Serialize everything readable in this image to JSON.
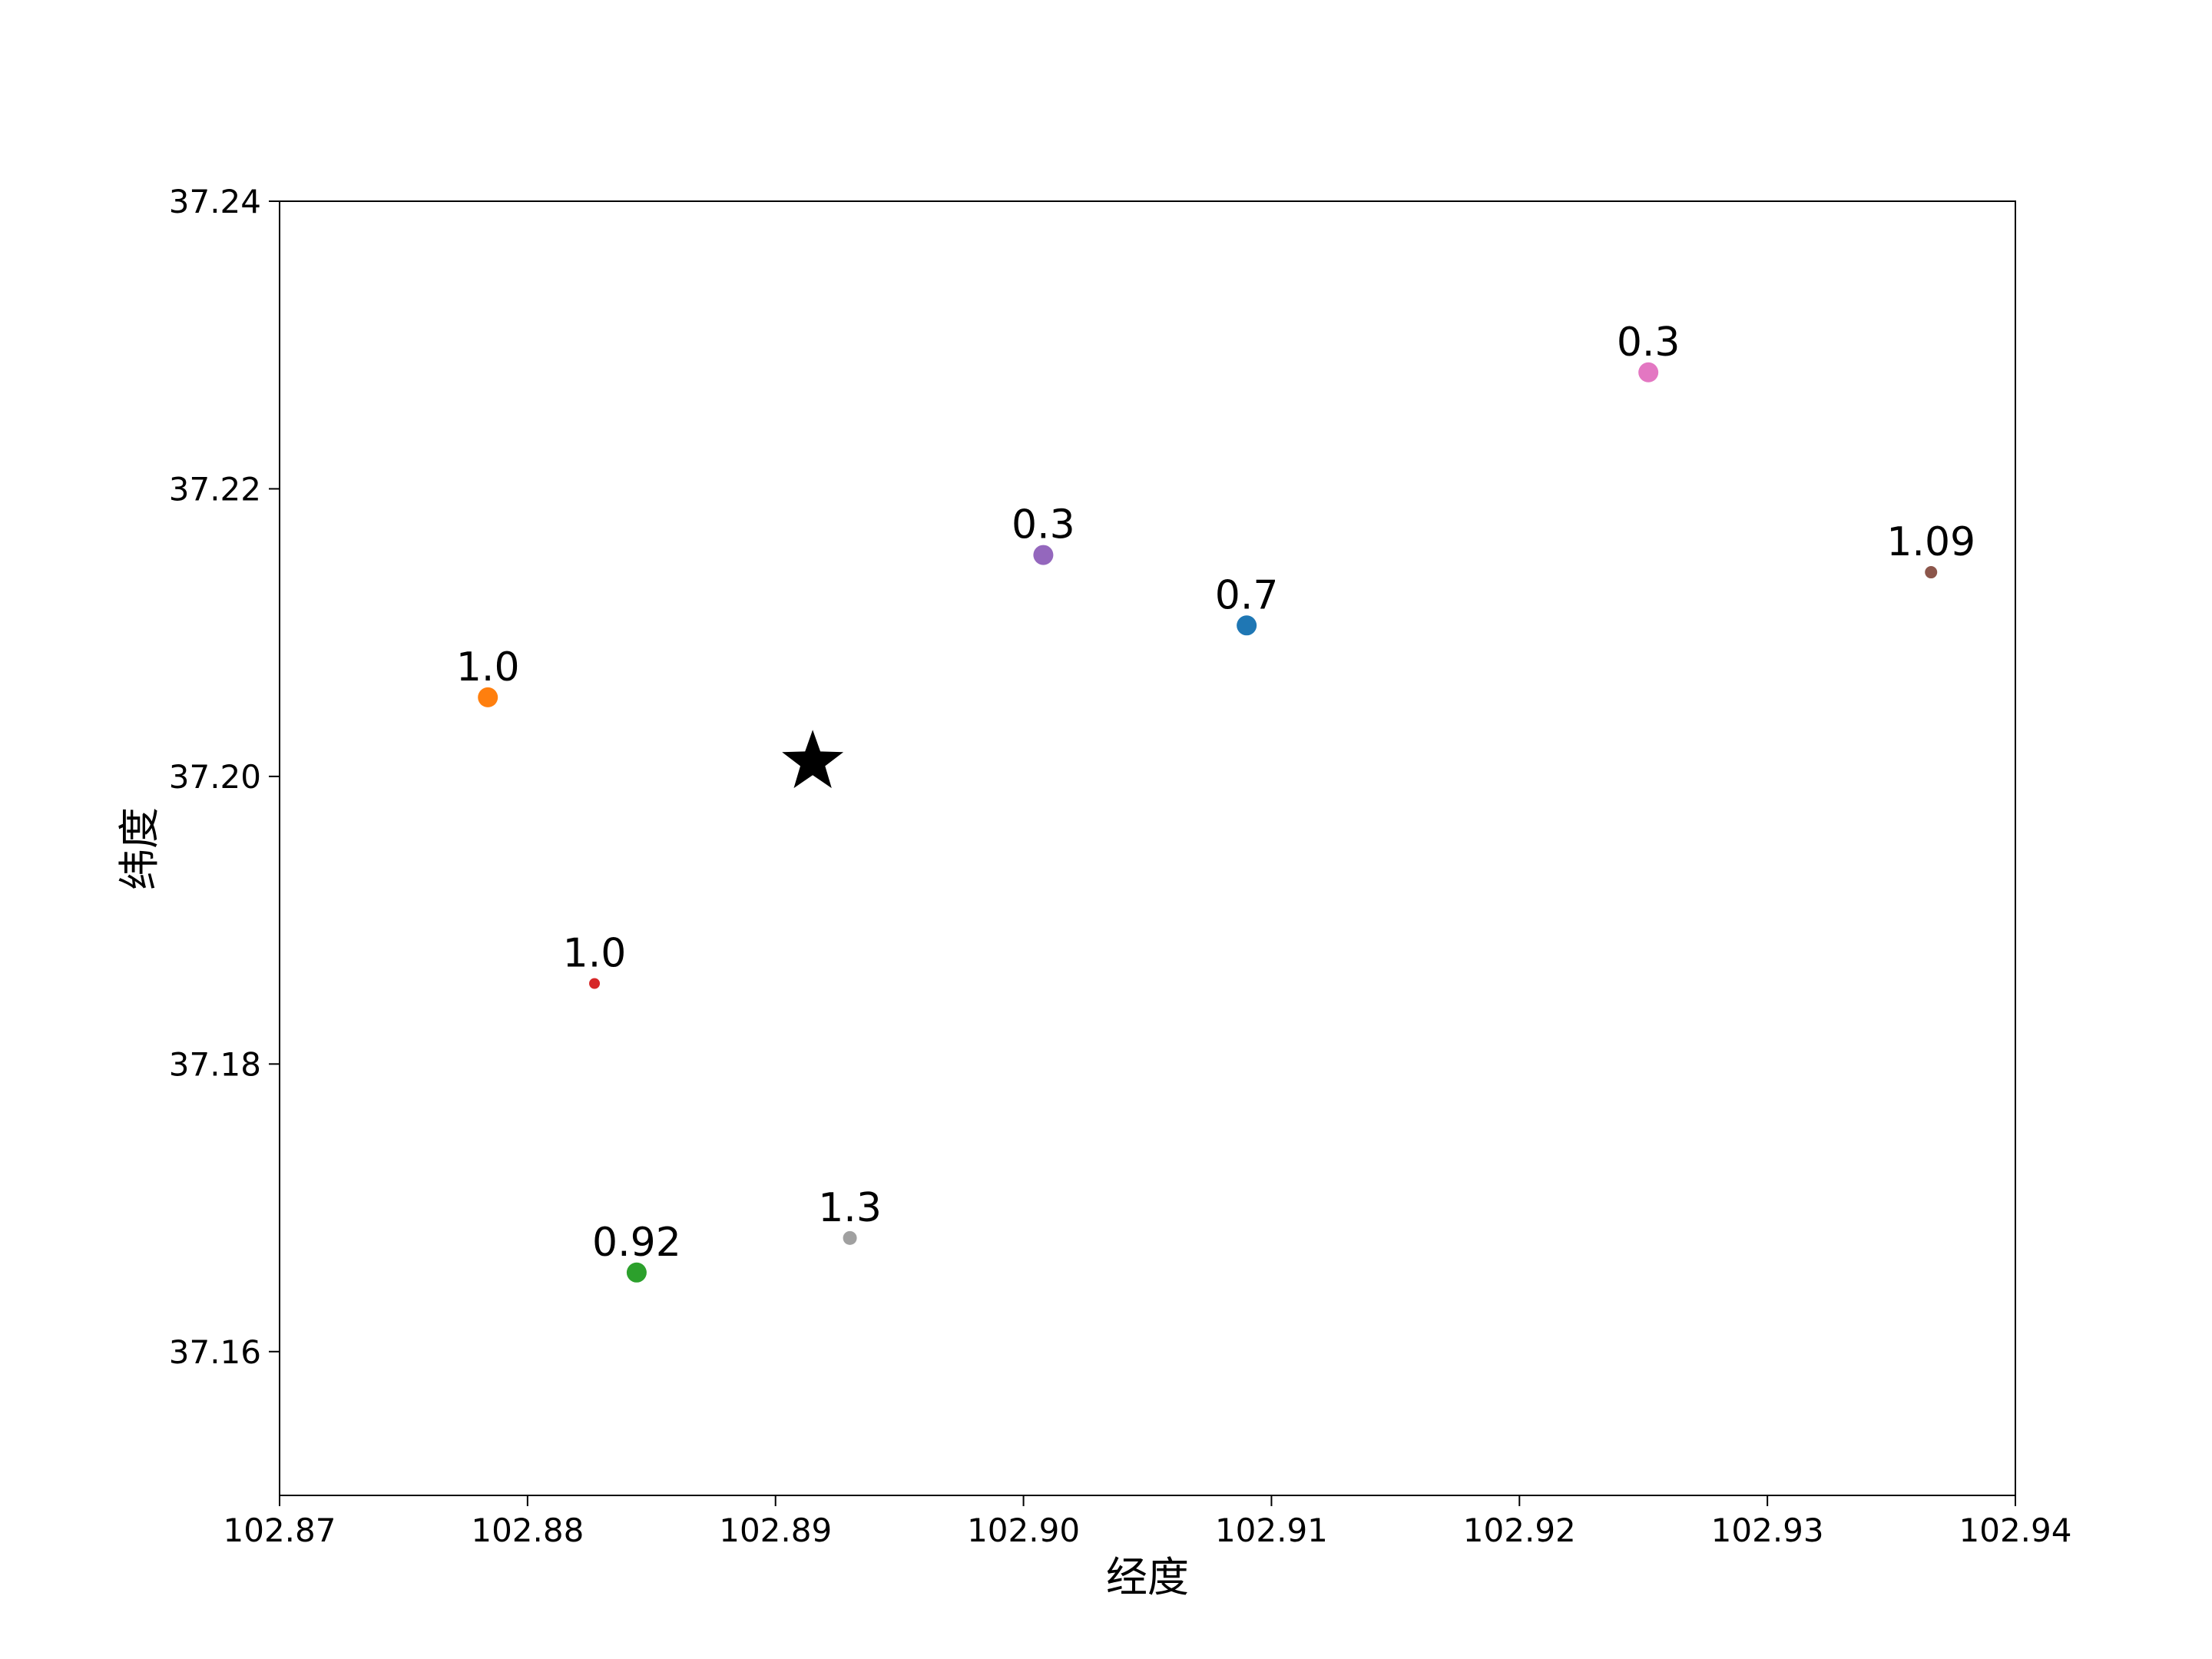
{
  "chart_data": {
    "type": "scatter",
    "title": "",
    "xlabel": "经度",
    "ylabel": "纬度",
    "xlim": [
      102.87,
      102.94
    ],
    "ylim": [
      37.15,
      37.24
    ],
    "x_ticks": [
      "102.87",
      "102.88",
      "102.89",
      "102.90",
      "102.91",
      "102.92",
      "102.93",
      "102.94"
    ],
    "y_ticks": [
      "37.16",
      "37.18",
      "37.20",
      "37.22",
      "37.24"
    ],
    "grid": false,
    "points": [
      {
        "x": 102.909,
        "y": 37.2105,
        "label": "0.7",
        "color": "#1f77b4",
        "size": 13
      },
      {
        "x": 102.8784,
        "y": 37.2055,
        "label": "1.0",
        "color": "#ff7f0e",
        "size": 13
      },
      {
        "x": 102.8844,
        "y": 37.1655,
        "label": "0.92",
        "color": "#2ca02c",
        "size": 13
      },
      {
        "x": 102.8827,
        "y": 37.1856,
        "label": "1.0",
        "color": "#d62728",
        "size": 7
      },
      {
        "x": 102.9008,
        "y": 37.2154,
        "label": "0.3",
        "color": "#9467bd",
        "size": 13
      },
      {
        "x": 102.9366,
        "y": 37.2142,
        "label": "1.09",
        "color": "#8c564b",
        "size": 8
      },
      {
        "x": 102.9252,
        "y": 37.2281,
        "label": "0.3",
        "color": "#e377c2",
        "size": 13
      },
      {
        "x": 102.893,
        "y": 37.1679,
        "label": "1.3",
        "color": "#a0a0a0",
        "size": 9
      }
    ],
    "marker": {
      "x": 102.8915,
      "y": 37.201,
      "shape": "star",
      "color": "#000000"
    }
  }
}
